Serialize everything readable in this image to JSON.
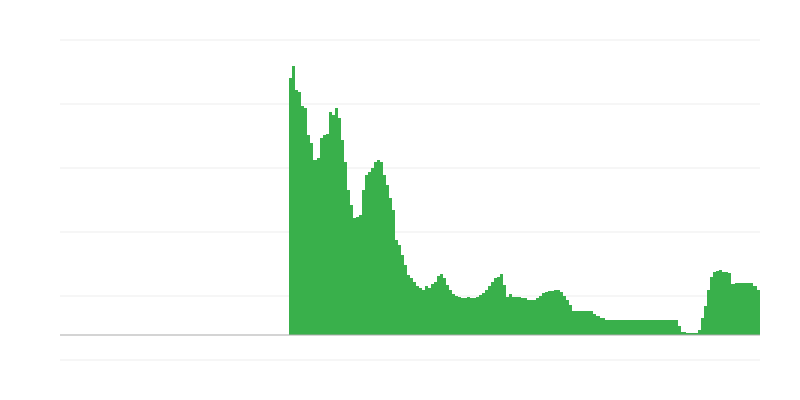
{
  "chart_data": {
    "type": "area",
    "title": "",
    "xlabel": "",
    "ylabel": "",
    "grid": true,
    "legend": "none",
    "fill_color": "#39b04b",
    "baseline_color": "#aaaaaa",
    "grid_color": "#eeeeee",
    "xlim": [
      0,
      700
    ],
    "ylim": [
      -25,
      295
    ],
    "gridlines": [
      -25,
      39,
      103,
      167,
      231,
      295
    ],
    "points": [
      [
        0,
        0
      ],
      [
        229,
        0
      ],
      [
        229,
        257
      ],
      [
        232,
        269
      ],
      [
        235,
        245
      ],
      [
        238,
        243
      ],
      [
        241,
        229
      ],
      [
        244,
        227
      ],
      [
        247,
        200
      ],
      [
        250,
        192
      ],
      [
        253,
        175
      ],
      [
        257,
        177
      ],
      [
        260,
        197
      ],
      [
        263,
        200
      ],
      [
        266,
        201
      ],
      [
        269,
        223
      ],
      [
        272,
        220
      ],
      [
        275,
        227
      ],
      [
        278,
        217
      ],
      [
        281,
        195
      ],
      [
        284,
        173
      ],
      [
        287,
        145
      ],
      [
        290,
        130
      ],
      [
        293,
        117
      ],
      [
        296,
        118
      ],
      [
        299,
        120
      ],
      [
        302,
        145
      ],
      [
        305,
        160
      ],
      [
        308,
        163
      ],
      [
        311,
        167
      ],
      [
        314,
        173
      ],
      [
        317,
        175
      ],
      [
        320,
        173
      ],
      [
        323,
        160
      ],
      [
        326,
        150
      ],
      [
        329,
        137
      ],
      [
        332,
        125
      ],
      [
        335,
        95
      ],
      [
        338,
        90
      ],
      [
        341,
        80
      ],
      [
        344,
        70
      ],
      [
        347,
        60
      ],
      [
        350,
        57
      ],
      [
        353,
        53
      ],
      [
        356,
        49
      ],
      [
        359,
        47
      ],
      [
        362,
        45
      ],
      [
        365,
        49
      ],
      [
        368,
        47
      ],
      [
        371,
        51
      ],
      [
        374,
        53
      ],
      [
        377,
        59
      ],
      [
        380,
        61
      ],
      [
        383,
        57
      ],
      [
        386,
        50
      ],
      [
        389,
        45
      ],
      [
        392,
        41
      ],
      [
        395,
        39
      ],
      [
        398,
        38
      ],
      [
        401,
        37
      ],
      [
        404,
        37
      ],
      [
        407,
        38
      ],
      [
        410,
        37
      ],
      [
        413,
        37
      ],
      [
        416,
        38
      ],
      [
        419,
        40
      ],
      [
        422,
        42
      ],
      [
        425,
        45
      ],
      [
        428,
        49
      ],
      [
        431,
        53
      ],
      [
        434,
        57
      ],
      [
        437,
        58
      ],
      [
        440,
        61
      ],
      [
        443,
        50
      ],
      [
        446,
        38
      ],
      [
        449,
        41
      ],
      [
        452,
        38
      ],
      [
        455,
        38
      ],
      [
        458,
        38
      ],
      [
        461,
        37
      ],
      [
        464,
        37
      ],
      [
        467,
        35
      ],
      [
        470,
        35
      ],
      [
        473,
        35
      ],
      [
        476,
        37
      ],
      [
        479,
        39
      ],
      [
        482,
        42
      ],
      [
        485,
        43
      ],
      [
        488,
        44
      ],
      [
        491,
        44
      ],
      [
        494,
        45
      ],
      [
        497,
        45
      ],
      [
        500,
        43
      ],
      [
        503,
        39
      ],
      [
        506,
        35
      ],
      [
        509,
        30
      ],
      [
        512,
        24
      ],
      [
        515,
        24
      ],
      [
        520,
        24
      ],
      [
        525,
        24
      ],
      [
        530,
        24
      ],
      [
        533,
        21
      ],
      [
        536,
        19
      ],
      [
        540,
        17
      ],
      [
        545,
        15
      ],
      [
        550,
        15
      ],
      [
        560,
        15
      ],
      [
        570,
        15
      ],
      [
        580,
        15
      ],
      [
        590,
        15
      ],
      [
        600,
        15
      ],
      [
        610,
        15
      ],
      [
        616,
        15
      ],
      [
        618,
        9
      ],
      [
        621,
        3
      ],
      [
        626,
        2
      ],
      [
        635,
        2
      ],
      [
        638,
        5
      ],
      [
        641,
        17
      ],
      [
        644,
        29
      ],
      [
        647,
        45
      ],
      [
        650,
        58
      ],
      [
        653,
        63
      ],
      [
        656,
        64
      ],
      [
        659,
        65
      ],
      [
        662,
        63
      ],
      [
        668,
        62
      ],
      [
        671,
        51
      ],
      [
        675,
        52
      ],
      [
        680,
        52
      ],
      [
        685,
        52
      ],
      [
        690,
        52
      ],
      [
        693,
        49
      ],
      [
        697,
        45
      ],
      [
        700,
        43
      ],
      [
        700,
        0
      ]
    ]
  }
}
